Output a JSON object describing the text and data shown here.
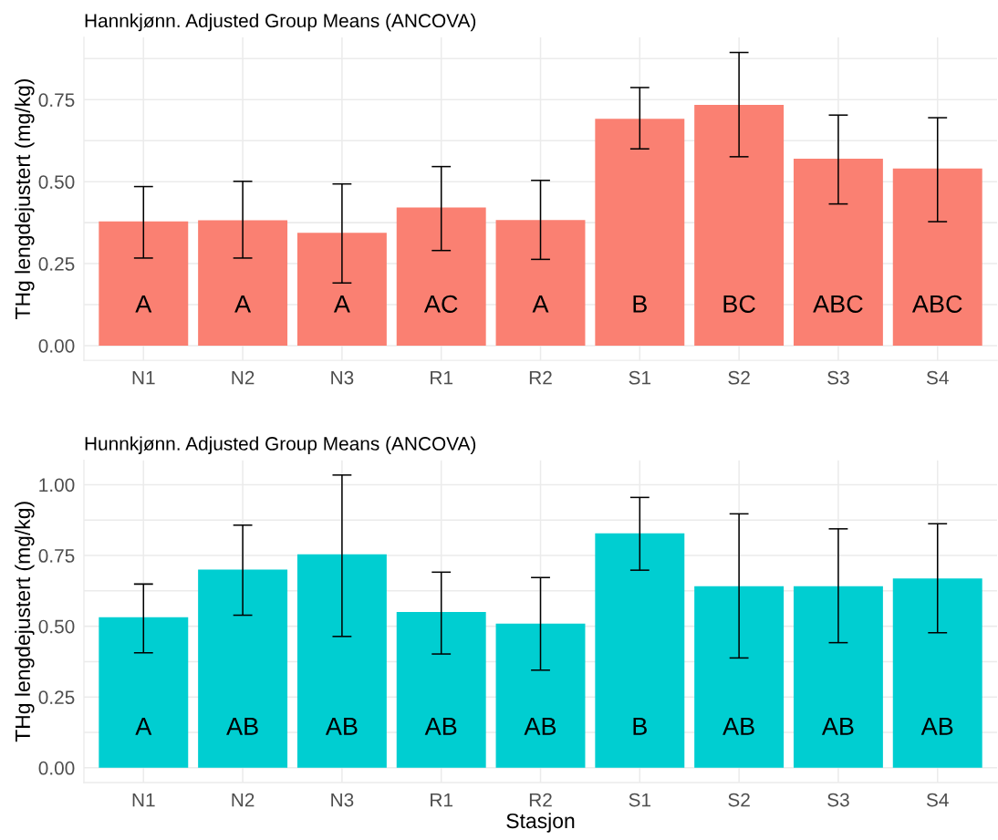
{
  "chart_data": [
    {
      "type": "bar",
      "title": "Hannkjønn. Adjusted Group Means (ANCOVA)",
      "ylabel": "THg lengdejustert (mg/kg)",
      "categories": [
        "N1",
        "N2",
        "N3",
        "R1",
        "R2",
        "S1",
        "S2",
        "S3",
        "S4"
      ],
      "values": [
        0.379,
        0.382,
        0.344,
        0.421,
        0.383,
        0.692,
        0.734,
        0.57,
        0.54
      ],
      "errors": [
        [
          0.267,
          0.485
        ],
        [
          0.267,
          0.501
        ],
        [
          0.191,
          0.493
        ],
        [
          0.29,
          0.546
        ],
        [
          0.263,
          0.504
        ],
        [
          0.6,
          0.787
        ],
        [
          0.576,
          0.894
        ],
        [
          0.432,
          0.703
        ],
        [
          0.378,
          0.695
        ]
      ],
      "color": "#fa8072",
      "ylim": [
        -0.045,
        0.94
      ],
      "yticks": [
        {
          "value": 0,
          "label": "0.00"
        },
        {
          "value": 0.125,
          "label": null
        },
        {
          "value": 0.25,
          "label": "0.25"
        },
        {
          "value": 0.375,
          "label": null
        },
        {
          "value": 0.5,
          "label": "0.50"
        },
        {
          "value": 0.625,
          "label": null
        },
        {
          "value": 0.75,
          "label": "0.75"
        },
        {
          "value": 0.875,
          "label": null
        }
      ],
      "grid": true,
      "annotations": [
        "A",
        "A",
        "A",
        "AC",
        "A",
        "B",
        "BC",
        "ABC",
        "ABC"
      ]
    },
    {
      "type": "bar",
      "title": "Hunnkjønn. Adjusted Group Means (ANCOVA)",
      "xlabel": "Stasjon",
      "ylabel": "THg lengdejustert (mg/kg)",
      "categories": [
        "N1",
        "N2",
        "N3",
        "R1",
        "R2",
        "S1",
        "S2",
        "S3",
        "S4"
      ],
      "values": [
        0.532,
        0.7,
        0.754,
        0.55,
        0.509,
        0.828,
        0.641,
        0.641,
        0.669
      ],
      "errors": [
        [
          0.406,
          0.649
        ],
        [
          0.539,
          0.857
        ],
        [
          0.464,
          1.034
        ],
        [
          0.402,
          0.691
        ],
        [
          0.345,
          0.672
        ],
        [
          0.698,
          0.955
        ],
        [
          0.388,
          0.897
        ],
        [
          0.442,
          0.844
        ],
        [
          0.477,
          0.862
        ]
      ],
      "color": "#00ced1",
      "ylim": [
        -0.052,
        1.086
      ],
      "yticks": [
        {
          "value": 0,
          "label": "0.00"
        },
        {
          "value": 0.125,
          "label": null
        },
        {
          "value": 0.25,
          "label": "0.25"
        },
        {
          "value": 0.375,
          "label": null
        },
        {
          "value": 0.5,
          "label": "0.50"
        },
        {
          "value": 0.625,
          "label": null
        },
        {
          "value": 0.75,
          "label": "0.75"
        },
        {
          "value": 0.875,
          "label": null
        },
        {
          "value": 1.0,
          "label": "1.00"
        }
      ],
      "grid": true,
      "annotations": [
        "A",
        "AB",
        "AB",
        "AB",
        "AB",
        "B",
        "AB",
        "AB",
        "AB"
      ]
    }
  ]
}
